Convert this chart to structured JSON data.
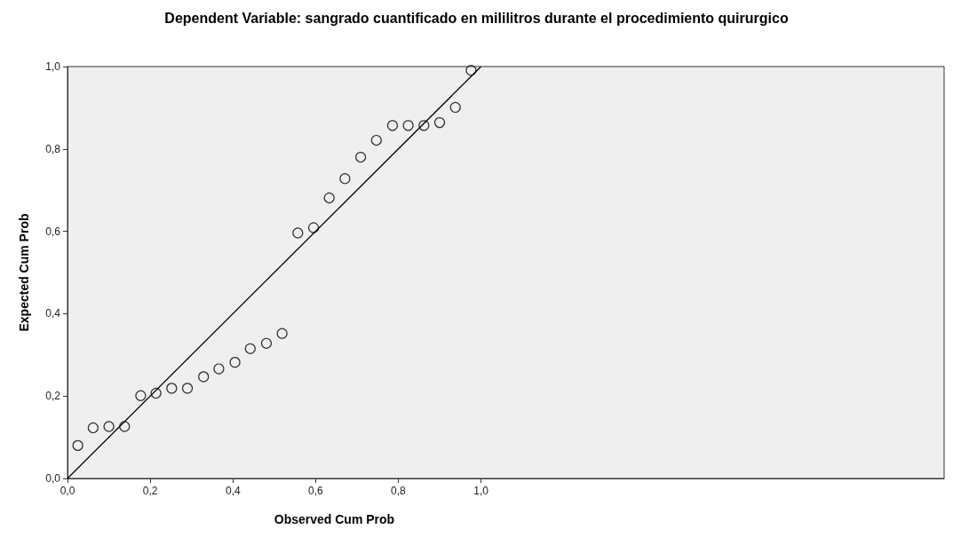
{
  "chart_data": {
    "type": "scatter",
    "title": "Dependent Variable: sangrado cuantificado en mililitros durante el procedimiento quirurgico",
    "xlabel": "Observed Cum Prob",
    "ylabel": "Expected Cum Prob",
    "xlim": [
      0,
      2.12
    ],
    "ylim": [
      0,
      1
    ],
    "xticks": [
      {
        "value": 0,
        "label": "0,0"
      },
      {
        "value": 0.2,
        "label": "0,2"
      },
      {
        "value": 0.4,
        "label": "0,4"
      },
      {
        "value": 0.6,
        "label": "0,6"
      },
      {
        "value": 0.8,
        "label": "0,8"
      },
      {
        "value": 1,
        "label": "1,0"
      }
    ],
    "yticks": [
      {
        "value": 0,
        "label": "0,0"
      },
      {
        "value": 0.2,
        "label": "0,2"
      },
      {
        "value": 0.4,
        "label": "0,4"
      },
      {
        "value": 0.6,
        "label": "0,6"
      },
      {
        "value": 0.8,
        "label": "0,8"
      },
      {
        "value": 1,
        "label": "1,0"
      }
    ],
    "grid": false,
    "series": [
      {
        "color": "#000000",
        "marker": "circle",
        "x": [
          0.025,
          0.062,
          0.1,
          0.138,
          0.177,
          0.214,
          0.252,
          0.29,
          0.329,
          0.366,
          0.405,
          0.442,
          0.481,
          0.519,
          0.557,
          0.595,
          0.633,
          0.671,
          0.709,
          0.747,
          0.786,
          0.824,
          0.862,
          0.9,
          0.938,
          0.976
        ],
        "values": [
          0.08,
          0.123,
          0.126,
          0.126,
          0.201,
          0.207,
          0.219,
          0.219,
          0.247,
          0.266,
          0.282,
          0.315,
          0.328,
          0.352,
          0.596,
          0.609,
          0.681,
          0.728,
          0.78,
          0.821,
          0.857,
          0.857,
          0.857,
          0.864,
          0.901,
          0.991
        ]
      },
      {
        "type": "line",
        "marker": "none",
        "color": "#000000",
        "x": [
          0,
          1
        ],
        "values": [
          0,
          1
        ]
      }
    ]
  }
}
